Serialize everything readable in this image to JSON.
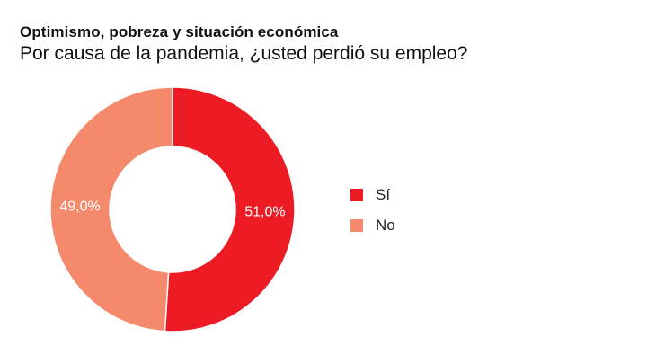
{
  "title": "Optimismo, pobreza y situación económica",
  "subtitle": "Por causa de la pandemia, ¿usted perdió su empleo?",
  "chart_data": {
    "type": "pie",
    "donut": true,
    "slices": [
      {
        "label": "Sí",
        "value": 51.0,
        "display": "51,0%",
        "color": "#ed1c24"
      },
      {
        "label": "No",
        "value": 49.0,
        "display": "49,0%",
        "color": "#f4896b"
      }
    ],
    "legend_position": "right"
  }
}
